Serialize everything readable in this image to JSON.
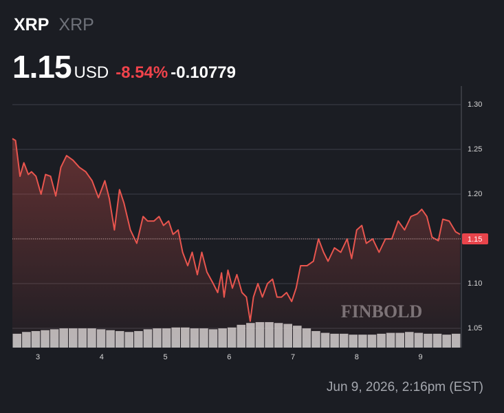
{
  "header": {
    "symbol": "XRP",
    "name": "XRP",
    "price": "1.15",
    "currency": "USD",
    "change_percent": "-8.54%",
    "change": "-0.10779"
  },
  "chart_data": {
    "type": "line",
    "x": [
      2.6,
      2.65,
      2.72,
      2.78,
      2.85,
      2.9,
      2.97,
      3.05,
      3.12,
      3.2,
      3.28,
      3.36,
      3.45,
      3.55,
      3.65,
      3.75,
      3.85,
      3.95,
      4.05,
      4.12,
      4.2,
      4.28,
      4.35,
      4.45,
      4.55,
      4.65,
      4.72,
      4.82,
      4.9,
      4.97,
      5.05,
      5.12,
      5.2,
      5.27,
      5.35,
      5.42,
      5.5,
      5.57,
      5.65,
      5.75,
      5.82,
      5.88,
      5.92,
      5.98,
      6.05,
      6.12,
      6.2,
      6.27,
      6.33,
      6.38,
      6.45,
      6.52,
      6.6,
      6.68,
      6.75,
      6.82,
      6.9,
      6.98,
      7.05,
      7.12,
      7.22,
      7.32,
      7.4,
      7.48,
      7.55,
      7.65,
      7.75,
      7.85,
      7.92,
      8.0,
      8.08,
      8.15,
      8.25,
      8.35,
      8.45,
      8.55,
      8.65,
      8.75,
      8.85,
      8.95,
      9.02,
      9.1,
      9.18,
      9.28,
      9.35,
      9.45,
      9.55,
      9.62
    ],
    "series": [
      {
        "name": "XRP",
        "color": "#e8554e",
        "values": [
          1.262,
          1.26,
          1.22,
          1.235,
          1.222,
          1.225,
          1.22,
          1.2,
          1.222,
          1.22,
          1.198,
          1.23,
          1.243,
          1.238,
          1.23,
          1.225,
          1.215,
          1.196,
          1.215,
          1.195,
          1.16,
          1.205,
          1.19,
          1.16,
          1.145,
          1.175,
          1.17,
          1.17,
          1.175,
          1.165,
          1.17,
          1.155,
          1.16,
          1.135,
          1.12,
          1.135,
          1.11,
          1.135,
          1.113,
          1.1,
          1.09,
          1.112,
          1.085,
          1.115,
          1.095,
          1.11,
          1.09,
          1.085,
          1.058,
          1.085,
          1.1,
          1.085,
          1.1,
          1.105,
          1.085,
          1.085,
          1.09,
          1.08,
          1.095,
          1.12,
          1.12,
          1.125,
          1.15,
          1.135,
          1.125,
          1.14,
          1.135,
          1.15,
          1.128,
          1.16,
          1.165,
          1.145,
          1.15,
          1.135,
          1.15,
          1.15,
          1.17,
          1.16,
          1.175,
          1.178,
          1.183,
          1.175,
          1.152,
          1.148,
          1.172,
          1.17,
          1.158,
          1.155
        ]
      }
    ],
    "volume": {
      "color": "#d4d4d4",
      "values": [
        1.044,
        1.046,
        1.047,
        1.048,
        1.049,
        1.05,
        1.05,
        1.05,
        1.05,
        1.049,
        1.048,
        1.047,
        1.046,
        1.047,
        1.049,
        1.05,
        1.05,
        1.051,
        1.051,
        1.05,
        1.05,
        1.049,
        1.05,
        1.051,
        1.054,
        1.056,
        1.057,
        1.057,
        1.056,
        1.055,
        1.053,
        1.05,
        1.047,
        1.045,
        1.044,
        1.044,
        1.043,
        1.043,
        1.043,
        1.044,
        1.045,
        1.045,
        1.046,
        1.045,
        1.044,
        1.044,
        1.043,
        1.044
      ]
    },
    "last_value": 1.15,
    "xlim": [
      2.6,
      9.63
    ],
    "xticks": [
      3,
      4,
      5,
      6,
      7,
      8,
      9
    ],
    "ylim": [
      1.0285,
      1.3185
    ],
    "yticks": [
      1.05,
      {
        "value": 1.1,
        "label": "1.10"
      },
      1.15,
      {
        "value": 1.2,
        "label": "1.20"
      },
      1.25,
      {
        "value": 1.3,
        "label": "1.30"
      }
    ],
    "grid": true,
    "watermark": "FINBOLD"
  },
  "footer": {
    "timestamp": "Jun 9, 2026, 2:16pm (EST)"
  }
}
